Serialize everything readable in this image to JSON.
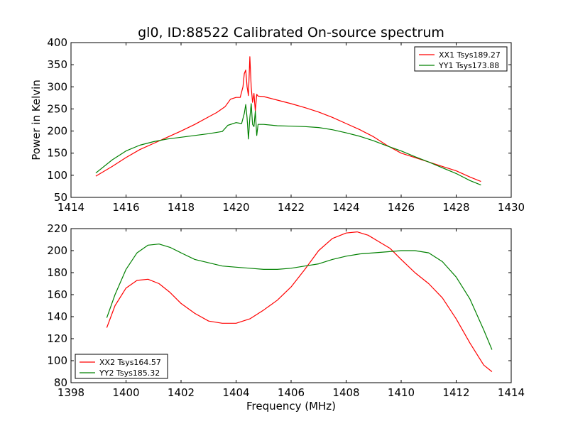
{
  "chart_data": {
    "title": "gl0, ID:88522 Calibrated On-source spectrum",
    "charts": [
      {
        "type": "line",
        "ylabel": "Power in Kelvin",
        "xlabel": "",
        "xlim": [
          1414,
          1430
        ],
        "ylim": [
          50,
          400
        ],
        "xticks": [
          1414,
          1416,
          1418,
          1420,
          1422,
          1424,
          1426,
          1428,
          1430
        ],
        "yticks": [
          50,
          100,
          150,
          200,
          250,
          300,
          350,
          400
        ],
        "legend_position": "upper right",
        "series": [
          {
            "name": "XX1 Tsys189.27",
            "color": "#ff0000",
            "x": [
              1414.9,
              1415.5,
              1416.0,
              1416.5,
              1417.0,
              1417.5,
              1418.0,
              1418.5,
              1419.0,
              1419.3,
              1419.6,
              1419.8,
              1420.0,
              1420.15,
              1420.25,
              1420.3,
              1420.35,
              1420.4,
              1420.45,
              1420.5,
              1420.55,
              1420.6,
              1420.65,
              1420.7,
              1420.75,
              1420.8,
              1421.0,
              1421.5,
              1422.0,
              1422.5,
              1423.0,
              1423.5,
              1424.0,
              1424.5,
              1425.0,
              1425.5,
              1426.0,
              1426.5,
              1427.0,
              1427.5,
              1428.0,
              1428.5,
              1428.9
            ],
            "y": [
              98,
              120,
              140,
              158,
              172,
              186,
              200,
              215,
              232,
              242,
              255,
              272,
              276,
              276,
              300,
              330,
              338,
              300,
              280,
              368,
              300,
              265,
              285,
              245,
              283,
              279,
              278,
              270,
              262,
              253,
              243,
              231,
              217,
              203,
              187,
              167,
              150,
              140,
              130,
              120,
              110,
              96,
              86
            ]
          },
          {
            "name": "YY1 Tsys173.88",
            "color": "#008000",
            "x": [
              1414.9,
              1415.5,
              1416.0,
              1416.5,
              1417.0,
              1417.5,
              1418.0,
              1418.5,
              1419.0,
              1419.5,
              1419.7,
              1420.0,
              1420.2,
              1420.3,
              1420.35,
              1420.4,
              1420.45,
              1420.5,
              1420.55,
              1420.6,
              1420.65,
              1420.7,
              1420.75,
              1420.8,
              1421.0,
              1421.5,
              1422.0,
              1422.5,
              1423.0,
              1423.5,
              1424.0,
              1424.5,
              1425.0,
              1425.5,
              1426.0,
              1426.5,
              1427.0,
              1427.5,
              1428.0,
              1428.5,
              1428.9
            ],
            "y": [
              105,
              135,
              155,
              168,
              176,
              182,
              186,
              190,
              194,
              199,
              213,
              219,
              217,
              240,
              260,
              230,
              182,
              230,
              262,
              215,
              210,
              245,
              190,
              215,
              215,
              212,
              211,
              210,
              208,
              203,
              196,
              188,
              178,
              166,
              155,
              142,
              130,
              117,
              104,
              88,
              78
            ]
          }
        ]
      },
      {
        "type": "line",
        "ylabel": "",
        "xlabel": "Frequency (MHz)",
        "xlim": [
          1398,
          1414
        ],
        "ylim": [
          80,
          220
        ],
        "xticks": [
          1398,
          1400,
          1402,
          1404,
          1406,
          1408,
          1410,
          1412,
          1414
        ],
        "yticks": [
          80,
          100,
          120,
          140,
          160,
          180,
          200,
          220
        ],
        "legend_position": "lower left",
        "series": [
          {
            "name": "XX2 Tsys164.57",
            "color": "#ff0000",
            "x": [
              1399.3,
              1399.6,
              1400.0,
              1400.4,
              1400.8,
              1401.2,
              1401.6,
              1402.0,
              1402.5,
              1403.0,
              1403.5,
              1404.0,
              1404.5,
              1405.0,
              1405.5,
              1406.0,
              1406.5,
              1407.0,
              1407.5,
              1408.0,
              1408.4,
              1408.8,
              1409.2,
              1409.6,
              1410.0,
              1410.5,
              1411.0,
              1411.5,
              1412.0,
              1412.5,
              1413.0,
              1413.3
            ],
            "y": [
              130,
              150,
              166,
              173,
              174,
              170,
              162,
              152,
              143,
              136,
              134,
              134,
              138,
              146,
              155,
              167,
              183,
              200,
              211,
              216,
              217,
              214,
              208,
              202,
              192,
              180,
              170,
              157,
              138,
              116,
              96,
              90
            ]
          },
          {
            "name": "YY2 Tsys185.32",
            "color": "#008000",
            "x": [
              1399.3,
              1399.6,
              1400.0,
              1400.4,
              1400.8,
              1401.2,
              1401.6,
              1402.0,
              1402.5,
              1403.0,
              1403.5,
              1404.0,
              1404.5,
              1405.0,
              1405.5,
              1406.0,
              1406.5,
              1407.0,
              1407.5,
              1408.0,
              1408.5,
              1409.0,
              1409.5,
              1410.0,
              1410.5,
              1411.0,
              1411.5,
              1412.0,
              1412.5,
              1413.0,
              1413.3
            ],
            "y": [
              139,
              160,
              183,
              198,
              205,
              206,
              203,
              198,
              192,
              189,
              186,
              185,
              184,
              183,
              183,
              184,
              186,
              188,
              192,
              195,
              197,
              198,
              199,
              200,
              200,
              198,
              190,
              176,
              156,
              128,
              110
            ]
          }
        ]
      }
    ]
  }
}
